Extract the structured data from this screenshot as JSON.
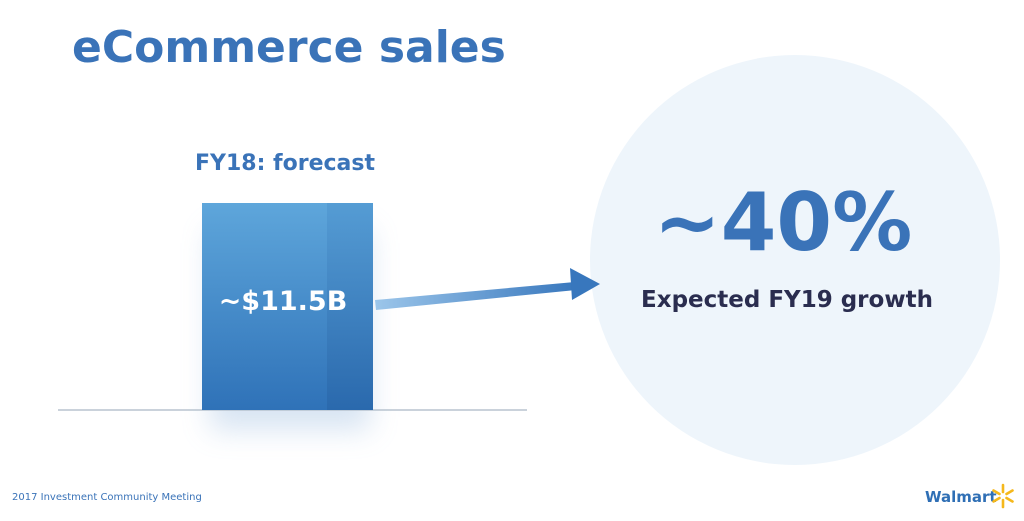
{
  "slide": {
    "title": "eCommerce sales",
    "bar_section": {
      "heading": "FY18: forecast",
      "value_label": "~$11.5B"
    },
    "highlight": {
      "value": "~40%",
      "caption": "Expected FY19 growth"
    },
    "footer": "2017 Investment Community Meeting",
    "logo": "Walmart"
  }
}
